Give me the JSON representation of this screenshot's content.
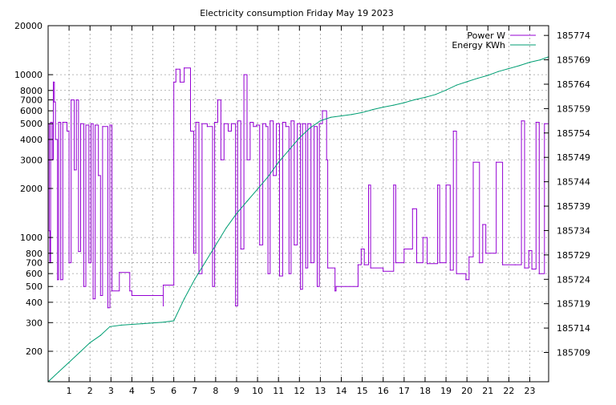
{
  "chart_data": {
    "type": "line",
    "title": "Electricity consumption Friday May 19 2023",
    "xlabel": "",
    "ylabel": "",
    "y2label": "",
    "grid": true,
    "legend_position": "top-right",
    "x_ticks": [
      1,
      2,
      3,
      4,
      5,
      6,
      7,
      8,
      9,
      10,
      11,
      12,
      13,
      14,
      15,
      16,
      17,
      18,
      19,
      20,
      21,
      22,
      23
    ],
    "xlim": [
      0,
      23.9
    ],
    "y_scale": "log",
    "ylim": [
      130,
      20000
    ],
    "y_ticks": [
      200,
      300,
      400,
      500,
      600,
      700,
      800,
      1000,
      2000,
      3000,
      4000,
      5000,
      6000,
      7000,
      8000,
      10000,
      20000
    ],
    "y2lim": [
      185703,
      185776
    ],
    "y2_ticks": [
      185709,
      185714,
      185719,
      185724,
      185729,
      185734,
      185739,
      185744,
      185749,
      185754,
      185759,
      185764,
      185769,
      185774
    ],
    "colors": {
      "power": "#9400d3",
      "energy": "#009e73",
      "grid": "#a0a0a0"
    },
    "series": [
      {
        "name": "Power W",
        "axis": "y1",
        "style": "step",
        "points": [
          [
            0,
            5000
          ],
          [
            0.05,
            1100
          ],
          [
            0.08,
            700
          ],
          [
            0.12,
            5100
          ],
          [
            0.2,
            3000
          ],
          [
            0.25,
            9000
          ],
          [
            0.3,
            6800
          ],
          [
            0.35,
            4000
          ],
          [
            0.45,
            550
          ],
          [
            0.5,
            5100
          ],
          [
            0.6,
            550
          ],
          [
            0.7,
            5100
          ],
          [
            0.9,
            4500
          ],
          [
            1.0,
            700
          ],
          [
            1.1,
            7000
          ],
          [
            1.25,
            2600
          ],
          [
            1.35,
            7000
          ],
          [
            1.45,
            820
          ],
          [
            1.55,
            5000
          ],
          [
            1.7,
            500
          ],
          [
            1.8,
            4900
          ],
          [
            1.95,
            700
          ],
          [
            2.05,
            5000
          ],
          [
            2.15,
            420
          ],
          [
            2.25,
            4900
          ],
          [
            2.4,
            2400
          ],
          [
            2.5,
            440
          ],
          [
            2.6,
            4800
          ],
          [
            2.85,
            370
          ],
          [
            2.95,
            4900
          ],
          [
            3.05,
            470
          ],
          [
            3.4,
            610
          ],
          [
            3.9,
            470
          ],
          [
            4.0,
            440
          ],
          [
            5.5,
            380
          ],
          [
            5.5,
            510
          ],
          [
            6.0,
            510
          ],
          [
            6.0,
            9000
          ],
          [
            6.1,
            10800
          ],
          [
            6.3,
            9000
          ],
          [
            6.5,
            11000
          ],
          [
            6.8,
            4500
          ],
          [
            6.95,
            800
          ],
          [
            7.05,
            5100
          ],
          [
            7.2,
            600
          ],
          [
            7.35,
            5000
          ],
          [
            7.6,
            4800
          ],
          [
            7.85,
            500
          ],
          [
            7.95,
            5100
          ],
          [
            8.1,
            7000
          ],
          [
            8.25,
            3000
          ],
          [
            8.4,
            5000
          ],
          [
            8.6,
            4500
          ],
          [
            8.75,
            5000
          ],
          [
            8.95,
            380
          ],
          [
            9.05,
            5200
          ],
          [
            9.2,
            850
          ],
          [
            9.35,
            10000
          ],
          [
            9.5,
            3000
          ],
          [
            9.65,
            5100
          ],
          [
            9.8,
            4800
          ],
          [
            9.95,
            4900
          ],
          [
            10.1,
            900
          ],
          [
            10.25,
            5000
          ],
          [
            10.4,
            4800
          ],
          [
            10.5,
            600
          ],
          [
            10.6,
            5200
          ],
          [
            10.75,
            2400
          ],
          [
            10.9,
            5000
          ],
          [
            11.05,
            580
          ],
          [
            11.2,
            5100
          ],
          [
            11.35,
            4800
          ],
          [
            11.5,
            600
          ],
          [
            11.6,
            5200
          ],
          [
            11.75,
            900
          ],
          [
            11.9,
            5000
          ],
          [
            12.05,
            480
          ],
          [
            12.15,
            5000
          ],
          [
            12.3,
            650
          ],
          [
            12.4,
            5000
          ],
          [
            12.55,
            700
          ],
          [
            12.7,
            4800
          ],
          [
            12.85,
            500
          ],
          [
            12.95,
            5000
          ],
          [
            13.1,
            6000
          ],
          [
            13.3,
            3000
          ],
          [
            13.35,
            650
          ],
          [
            13.7,
            470
          ],
          [
            13.75,
            500
          ],
          [
            14.8,
            500
          ],
          [
            14.8,
            680
          ],
          [
            14.95,
            850
          ],
          [
            15.1,
            680
          ],
          [
            15.3,
            2100
          ],
          [
            15.4,
            650
          ],
          [
            16.0,
            620
          ],
          [
            16.5,
            2100
          ],
          [
            16.6,
            700
          ],
          [
            17.0,
            850
          ],
          [
            17.4,
            1500
          ],
          [
            17.6,
            700
          ],
          [
            17.9,
            1000
          ],
          [
            18.1,
            690
          ],
          [
            18.6,
            2100
          ],
          [
            18.7,
            700
          ],
          [
            19.0,
            2100
          ],
          [
            19.2,
            630
          ],
          [
            19.35,
            4500
          ],
          [
            19.5,
            600
          ],
          [
            19.95,
            550
          ],
          [
            20.1,
            760
          ],
          [
            20.3,
            2900
          ],
          [
            20.6,
            700
          ],
          [
            20.75,
            1200
          ],
          [
            20.9,
            800
          ],
          [
            21.4,
            2900
          ],
          [
            21.7,
            680
          ],
          [
            22.3,
            680
          ],
          [
            22.6,
            5200
          ],
          [
            22.75,
            650
          ],
          [
            22.95,
            830
          ],
          [
            23.1,
            640
          ],
          [
            23.3,
            5100
          ],
          [
            23.45,
            600
          ],
          [
            23.7,
            5000
          ],
          [
            23.9,
            580
          ]
        ]
      },
      {
        "name": "Energy KWh",
        "axis": "y2",
        "style": "line",
        "points": [
          [
            0,
            185703
          ],
          [
            0.5,
            185705
          ],
          [
            1.0,
            185707
          ],
          [
            1.5,
            185709
          ],
          [
            2.0,
            185711
          ],
          [
            2.5,
            185712.5
          ],
          [
            2.95,
            185714.3
          ],
          [
            3.5,
            185714.6
          ],
          [
            4.5,
            185714.9
          ],
          [
            5.5,
            185715.2
          ],
          [
            6.0,
            185715.5
          ],
          [
            6.5,
            185720
          ],
          [
            7.0,
            185724
          ],
          [
            7.5,
            185727.5
          ],
          [
            8.0,
            185731
          ],
          [
            8.5,
            185734.5
          ],
          [
            9.0,
            185737.5
          ],
          [
            9.5,
            185740
          ],
          [
            10.0,
            185742.5
          ],
          [
            10.5,
            185745
          ],
          [
            11.0,
            185748
          ],
          [
            11.5,
            185750.5
          ],
          [
            12.0,
            185753
          ],
          [
            12.5,
            185755
          ],
          [
            13.0,
            185756.5
          ],
          [
            13.5,
            185757.2
          ],
          [
            14.0,
            185757.5
          ],
          [
            14.5,
            185757.8
          ],
          [
            15.0,
            185758.2
          ],
          [
            15.5,
            185758.8
          ],
          [
            16.0,
            185759.3
          ],
          [
            16.5,
            185759.7
          ],
          [
            17.0,
            185760.2
          ],
          [
            17.5,
            185760.8
          ],
          [
            18.0,
            185761.3
          ],
          [
            18.5,
            185761.9
          ],
          [
            19.0,
            185762.8
          ],
          [
            19.5,
            185763.8
          ],
          [
            20.0,
            185764.5
          ],
          [
            20.5,
            185765.2
          ],
          [
            21.0,
            185765.8
          ],
          [
            21.5,
            185766.6
          ],
          [
            22.0,
            185767.2
          ],
          [
            22.5,
            185767.8
          ],
          [
            23.0,
            185768.5
          ],
          [
            23.5,
            185769
          ],
          [
            23.9,
            185769.6
          ]
        ]
      }
    ]
  }
}
